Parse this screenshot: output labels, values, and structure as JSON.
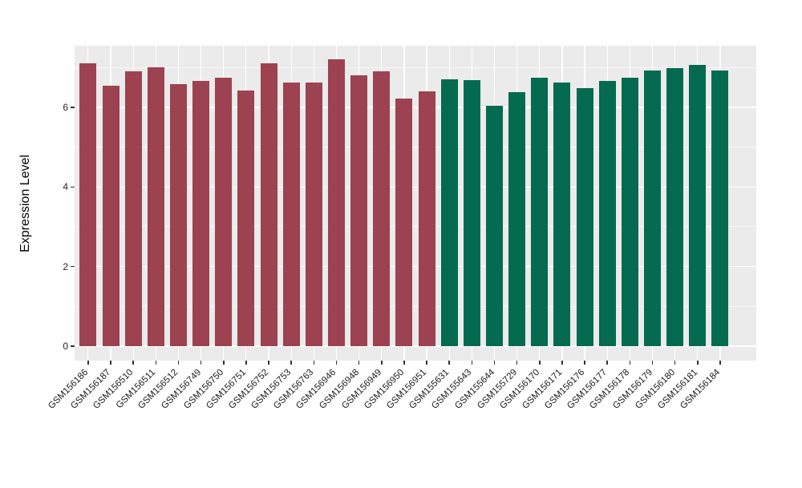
{
  "chart_data": {
    "type": "bar",
    "title": "",
    "xlabel": "",
    "ylabel": "Expression Level",
    "categories": [
      "GSM156186",
      "GSM156187",
      "GSM156510",
      "GSM156511",
      "GSM156512",
      "GSM156749",
      "GSM156750",
      "GSM156751",
      "GSM156752",
      "GSM156753",
      "GSM156763",
      "GSM156946",
      "GSM156948",
      "GSM156949",
      "GSM156950",
      "GSM156951",
      "GSM155631",
      "GSM155643",
      "GSM155644",
      "GSM155729",
      "GSM156170",
      "GSM156171",
      "GSM156176",
      "GSM156177",
      "GSM156178",
      "GSM156179",
      "GSM156180",
      "GSM156181",
      "GSM156184"
    ],
    "values": [
      7.1,
      6.55,
      6.9,
      7.0,
      6.59,
      6.67,
      6.75,
      6.43,
      7.11,
      6.62,
      6.62,
      7.2,
      6.81,
      6.9,
      6.22,
      6.41,
      6.7,
      6.68,
      6.04,
      6.38,
      6.74,
      6.63,
      6.48,
      6.66,
      6.75,
      6.92,
      6.98,
      7.06,
      6.92
    ],
    "bar_groups": [
      "red-group",
      "red-group",
      "red-group",
      "red-group",
      "red-group",
      "red-group",
      "red-group",
      "red-group",
      "red-group",
      "red-group",
      "red-group",
      "red-group",
      "red-group",
      "red-group",
      "red-group",
      "red-group",
      "green-group",
      "green-group",
      "green-group",
      "green-group",
      "green-group",
      "green-group",
      "green-group",
      "green-group",
      "green-group",
      "green-group",
      "green-group",
      "green-group",
      "green-group"
    ],
    "group_colors": {
      "red-group": "#9C4250",
      "green-group": "#046A50"
    },
    "ylim": [
      0,
      7.55
    ],
    "yticks": [
      0,
      2,
      4,
      6
    ],
    "ytick_labels": [
      "0",
      "2",
      "4",
      "6"
    ],
    "yticks_minor": [
      1,
      3,
      5,
      7
    ],
    "grid": "white major and minor gridlines on gray panel",
    "legend_position": "none",
    "panel_background": "#EBEBEB",
    "gridline_color": "#FFFFFF",
    "x_label_rotation_deg": 45
  }
}
